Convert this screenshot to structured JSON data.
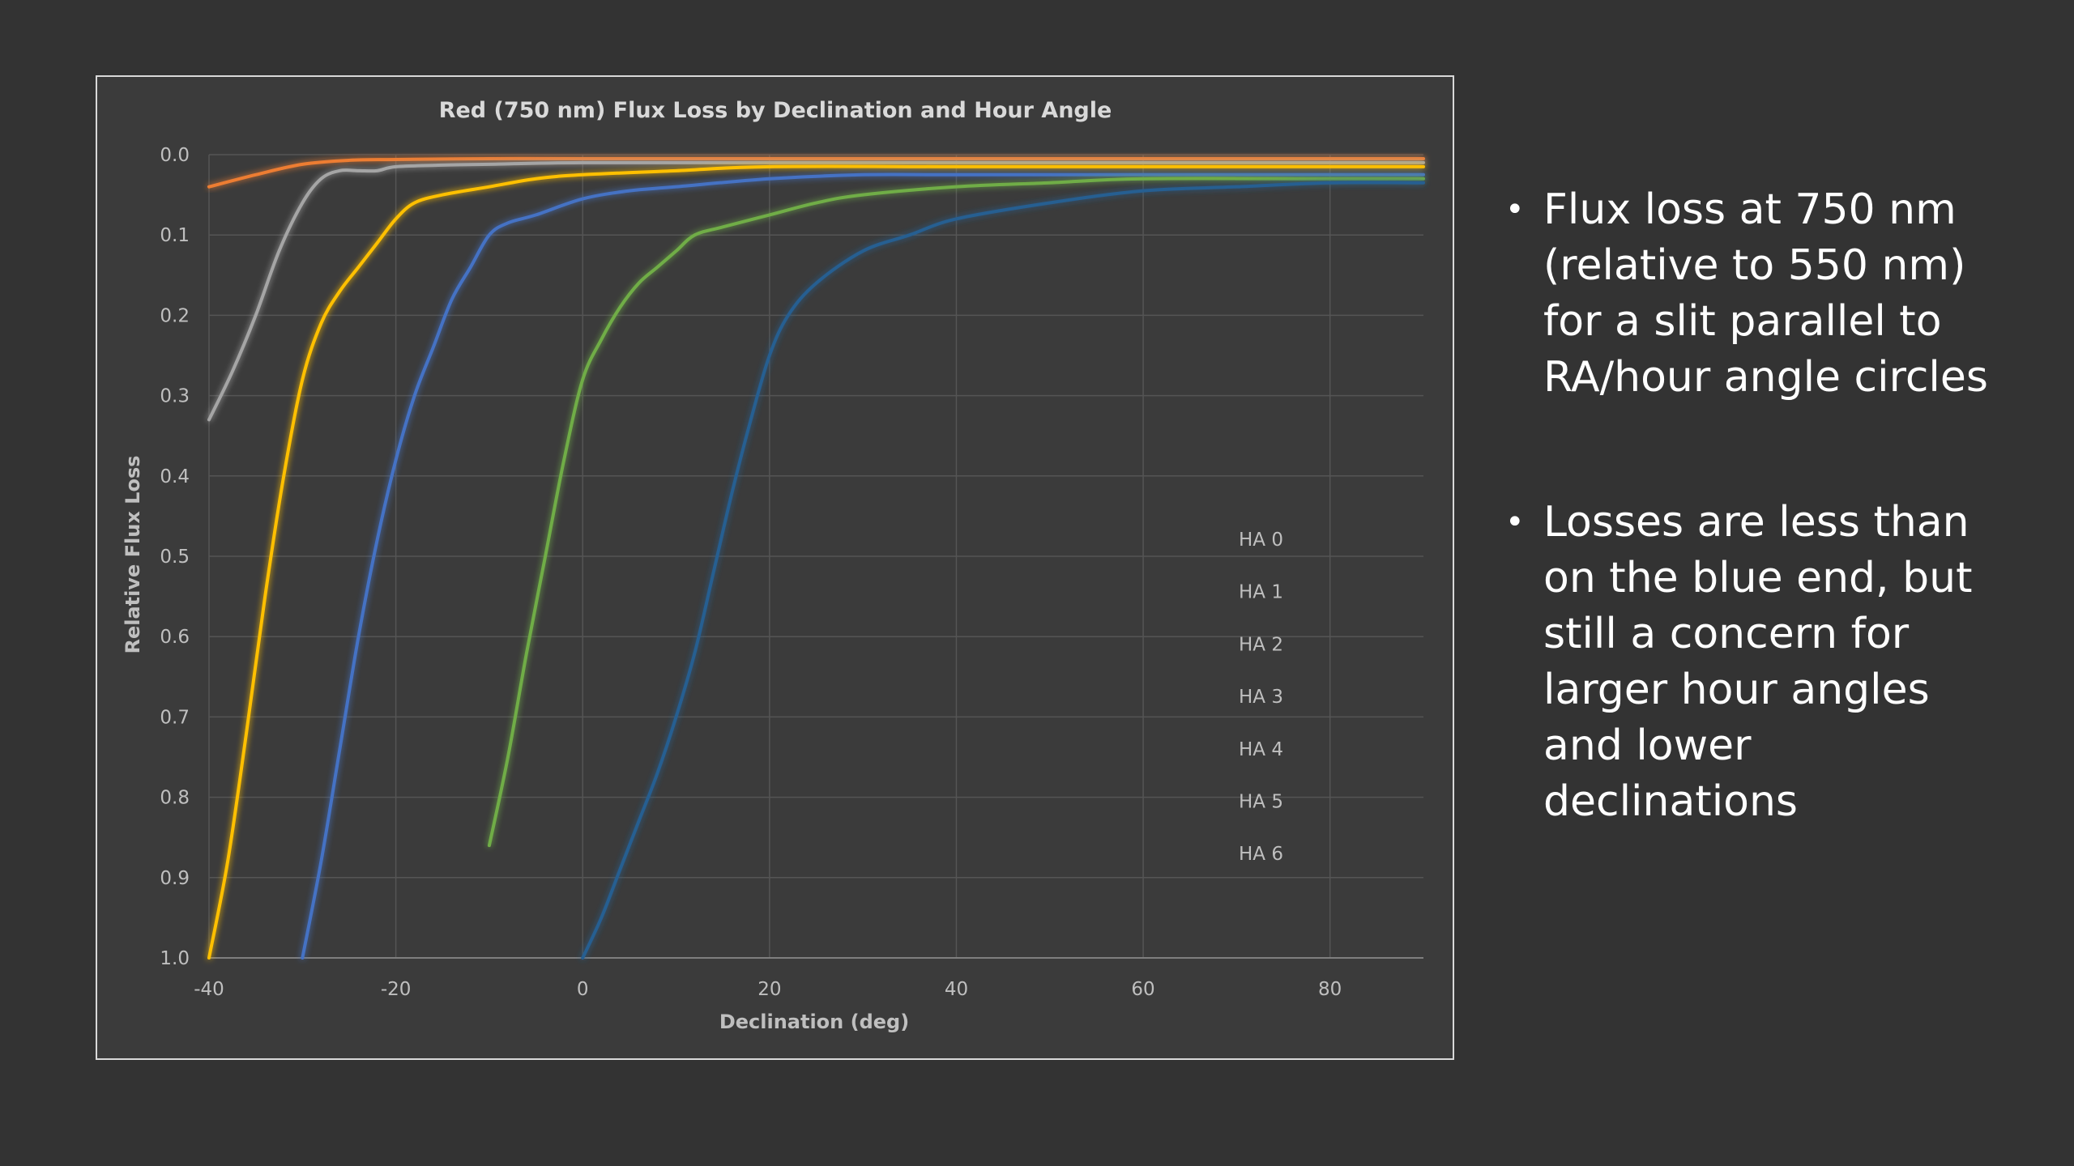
{
  "slide": {
    "bullets": [
      {
        "text": "Flux loss at 750 nm (relative to 550 nm) for a slit parallel to RA/hour angle circles"
      },
      {
        "text": "Losses are less than on the blue end, but still a concern for larger hour angles and lower declinations"
      }
    ]
  },
  "chart_data": {
    "type": "line",
    "title": "Red (750 nm) Flux Loss by Declination and Hour Angle",
    "xlabel": "Declination (deg)",
    "ylabel": "Relative Flux Loss",
    "xlim": [
      -40,
      90
    ],
    "ylim": [
      0,
      1
    ],
    "y_reversed": true,
    "x_ticks": [
      -40,
      -20,
      0,
      20,
      40,
      60,
      80
    ],
    "y_ticks": [
      0.0,
      0.1,
      0.2,
      0.3,
      0.4,
      0.5,
      0.6,
      0.7,
      0.8,
      0.9,
      1.0
    ],
    "grid": true,
    "legend_position": "right-center",
    "series": [
      {
        "name": "HA 0",
        "color": "#5b9bd5",
        "x": [
          -40,
          -20,
          0,
          20,
          40,
          60,
          80,
          90
        ],
        "y": [
          0,
          0,
          0,
          0,
          0,
          0,
          0,
          0
        ]
      },
      {
        "name": "HA 1",
        "color": "#ed7d31",
        "x": [
          -40,
          -35,
          -30,
          -25,
          -20,
          -10,
          0,
          20,
          40,
          60,
          80,
          90
        ],
        "y": [
          0.04,
          0.025,
          0.012,
          0.007,
          0.006,
          0.005,
          0.005,
          0.005,
          0.005,
          0.005,
          0.005,
          0.005
        ]
      },
      {
        "name": "HA 2",
        "color": "#a5a5a5",
        "x": [
          -40,
          -37.5,
          -35,
          -32.5,
          -30,
          -28,
          -26,
          -24,
          -22,
          -20,
          -15,
          -10,
          0,
          20,
          40,
          60,
          80,
          90
        ],
        "y": [
          0.33,
          0.27,
          0.2,
          0.12,
          0.06,
          0.03,
          0.02,
          0.02,
          0.02,
          0.015,
          0.013,
          0.012,
          0.01,
          0.01,
          0.01,
          0.01,
          0.01,
          0.01
        ]
      },
      {
        "name": "HA 3",
        "color": "#ffc000",
        "x": [
          -40,
          -38,
          -36,
          -34,
          -32,
          -30,
          -28,
          -26,
          -24,
          -22,
          -20,
          -18,
          -15,
          -10,
          -5,
          0,
          10,
          20,
          40,
          60,
          80,
          90
        ],
        "y": [
          1.0,
          0.88,
          0.72,
          0.55,
          0.4,
          0.28,
          0.21,
          0.17,
          0.14,
          0.11,
          0.08,
          0.06,
          0.05,
          0.04,
          0.03,
          0.025,
          0.02,
          0.015,
          0.015,
          0.015,
          0.015,
          0.015
        ]
      },
      {
        "name": "HA 4",
        "color": "#4472c4",
        "x": [
          -30,
          -28,
          -26,
          -24,
          -22,
          -20,
          -18,
          -16,
          -14,
          -12,
          -10,
          -8,
          -5,
          0,
          5,
          10,
          20,
          30,
          40,
          60,
          80,
          90
        ],
        "y": [
          1.0,
          0.88,
          0.74,
          0.6,
          0.48,
          0.38,
          0.3,
          0.24,
          0.18,
          0.14,
          0.1,
          0.085,
          0.075,
          0.055,
          0.045,
          0.04,
          0.03,
          0.025,
          0.025,
          0.025,
          0.025,
          0.025
        ]
      },
      {
        "name": "HA 5",
        "color": "#70ad47",
        "x": [
          -10,
          -8,
          -6,
          -4,
          -2,
          0,
          2,
          4,
          6,
          8,
          10,
          12,
          15,
          20,
          25,
          30,
          40,
          50,
          60,
          80,
          90
        ],
        "y": [
          0.86,
          0.75,
          0.62,
          0.5,
          0.38,
          0.28,
          0.23,
          0.19,
          0.16,
          0.14,
          0.12,
          0.1,
          0.09,
          0.075,
          0.06,
          0.05,
          0.04,
          0.035,
          0.03,
          0.03,
          0.03
        ]
      },
      {
        "name": "HA 6",
        "color": "#255e91",
        "x": [
          0,
          2,
          4,
          6,
          8,
          10,
          12,
          14,
          16,
          18,
          20,
          22,
          25,
          30,
          35,
          40,
          50,
          60,
          70,
          80,
          90
        ],
        "y": [
          1.0,
          0.95,
          0.89,
          0.83,
          0.77,
          0.7,
          0.62,
          0.52,
          0.42,
          0.33,
          0.25,
          0.2,
          0.16,
          0.12,
          0.1,
          0.08,
          0.06,
          0.045,
          0.04,
          0.035,
          0.035
        ]
      }
    ]
  }
}
